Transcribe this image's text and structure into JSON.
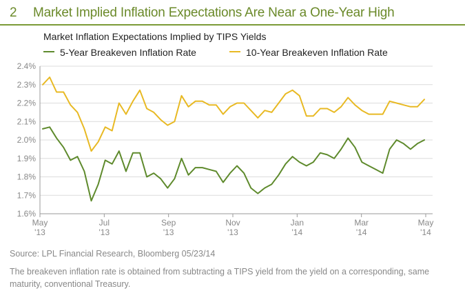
{
  "header": {
    "number": "2",
    "title": "Market Implied Inflation Expectations Are Near a One-Year High"
  },
  "colors": {
    "accent": "#7a9a36",
    "series_5y": "#5e8a2c",
    "series_10y": "#e8b923",
    "axis_text": "#888888"
  },
  "chart_data": {
    "type": "line",
    "title": "Market Inflation Expectations Implied by TIPS Yields",
    "ylabel": "",
    "xlabel": "",
    "ylim": [
      0.016,
      0.024
    ],
    "y_ticks": [
      "1.6%",
      "1.7%",
      "1.8%",
      "1.9%",
      "2.0%",
      "2.1%",
      "2.2%",
      "2.3%",
      "2.4%"
    ],
    "x_ticks": [
      {
        "line1": "May",
        "line2": "'13"
      },
      {
        "line1": "Jul",
        "line2": "'13"
      },
      {
        "line1": "Sep",
        "line2": "'13"
      },
      {
        "line1": "Nov",
        "line2": "'13"
      },
      {
        "line1": "Jan",
        "line2": "'14"
      },
      {
        "line1": "Mar",
        "line2": "'14"
      },
      {
        "line1": "May",
        "line2": "'14"
      }
    ],
    "grid": "horizontal",
    "legend_position": "top",
    "series": [
      {
        "name": "5-Year Breakeven Inflation Rate",
        "values": [
          0.0206,
          0.0207,
          0.0201,
          0.0196,
          0.0189,
          0.0191,
          0.0183,
          0.0167,
          0.0176,
          0.0189,
          0.0187,
          0.0194,
          0.0183,
          0.0193,
          0.0193,
          0.018,
          0.0182,
          0.0179,
          0.0174,
          0.0179,
          0.019,
          0.0181,
          0.0185,
          0.0185,
          0.0184,
          0.0183,
          0.0177,
          0.0182,
          0.0186,
          0.0182,
          0.0174,
          0.0171,
          0.0174,
          0.0176,
          0.0181,
          0.0187,
          0.0191,
          0.0188,
          0.0186,
          0.0188,
          0.0193,
          0.0192,
          0.019,
          0.0195,
          0.0201,
          0.0196,
          0.0188,
          0.0186,
          0.0184,
          0.0182,
          0.0195,
          0.02,
          0.0198,
          0.0195,
          0.0198,
          0.02
        ]
      },
      {
        "name": "10-Year Breakeven Inflation Rate",
        "values": [
          0.023,
          0.0234,
          0.0226,
          0.0226,
          0.0219,
          0.0215,
          0.0206,
          0.0194,
          0.0199,
          0.0207,
          0.0205,
          0.022,
          0.0214,
          0.0221,
          0.0227,
          0.0217,
          0.0215,
          0.0211,
          0.0208,
          0.021,
          0.0224,
          0.0218,
          0.0221,
          0.0221,
          0.0219,
          0.0219,
          0.0214,
          0.0218,
          0.022,
          0.022,
          0.0216,
          0.0212,
          0.0216,
          0.0215,
          0.022,
          0.0225,
          0.0227,
          0.0224,
          0.0213,
          0.0213,
          0.0217,
          0.0217,
          0.0215,
          0.0218,
          0.0223,
          0.0219,
          0.0216,
          0.0214,
          0.0214,
          0.0214,
          0.0221,
          0.022,
          0.0219,
          0.0218,
          0.0218,
          0.0222
        ]
      }
    ]
  },
  "source": "Source: LPL Financial Research, Bloomberg   05/23/14",
  "footnote": "The breakeven inflation rate is obtained from subtracting a TIPS yield from the yield on a corresponding, same maturity, conventional Treasury."
}
